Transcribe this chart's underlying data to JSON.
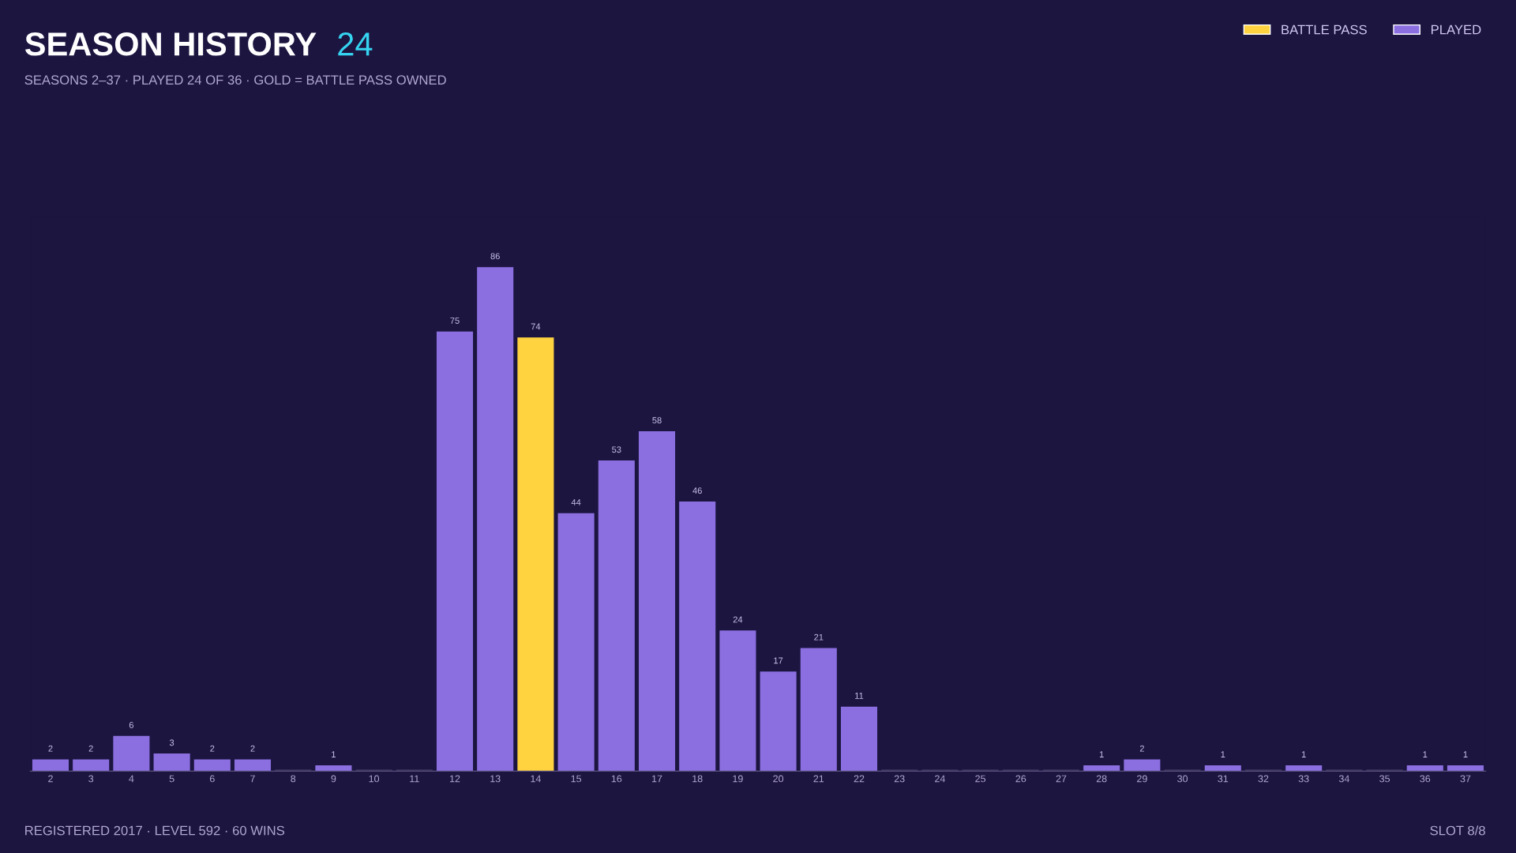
{
  "chart_data": {
    "type": "bar",
    "title": "SEASON HISTORY",
    "subtitle": "SEASONS 2–37 · PLAYED 24 OF 36 · GOLD = BATTLE PASS OWNED",
    "annotations": [
      "24",
      "REGISTERED 2017 · LEVEL 592 · 60 WINS",
      "SLOT 8/8"
    ],
    "categories": [
      "2",
      "3",
      "4",
      "5",
      "6",
      "7",
      "8",
      "9",
      "10",
      "11",
      "12",
      "13",
      "14",
      "15",
      "16",
      "17",
      "18",
      "19",
      "20",
      "21",
      "22",
      "23",
      "24",
      "25",
      "26",
      "27",
      "28",
      "29",
      "30",
      "31",
      "32",
      "33",
      "34",
      "35",
      "36",
      "37"
    ],
    "series": [
      {
        "name": "BATTLE PASS",
        "color": "#ffd23f",
        "values": [
          null,
          null,
          null,
          null,
          null,
          null,
          null,
          null,
          null,
          null,
          null,
          null,
          74,
          null,
          null,
          null,
          null,
          null,
          null,
          null,
          null,
          null,
          null,
          null,
          null,
          null,
          null,
          null,
          null,
          null,
          null,
          null,
          null,
          null,
          null,
          null
        ],
        "value_labels": [
          null,
          null,
          null,
          null,
          null,
          null,
          null,
          null,
          null,
          null,
          null,
          null,
          "74",
          null,
          null,
          null,
          null,
          null,
          null,
          null,
          null,
          null,
          null,
          null,
          null,
          null,
          null,
          null,
          null,
          null,
          null,
          null,
          null,
          null,
          null,
          null
        ]
      },
      {
        "name": "PLAYED",
        "color": "#8b6fe0",
        "colors": [
          "#8b6fe0",
          "#8b6fe0",
          "#8b6fe0",
          "#8b6fe0",
          "#8b6fe0",
          "#8b6fe0",
          "#3a3358",
          "#8b6fe0",
          "#3a3358",
          "#3a3358",
          "#8b6fe0",
          "#8b6fe0",
          null,
          "#8b6fe0",
          "#8b6fe0",
          "#8b6fe0",
          "#8b6fe0",
          "#8b6fe0",
          "#8b6fe0",
          "#8b6fe0",
          "#8b6fe0",
          "#3a3358",
          "#3a3358",
          "#3a3358",
          "#3a3358",
          "#3a3358",
          "#8b6fe0",
          "#8b6fe0",
          "#3a3358",
          "#8b6fe0",
          "#3a3358",
          "#8b6fe0",
          "#3a3358",
          "#3a3358",
          "#8b6fe0",
          "#8b6fe0"
        ],
        "values": [
          2,
          2,
          6,
          3,
          2,
          2,
          0,
          1,
          0,
          0,
          75,
          86,
          null,
          44,
          53,
          58,
          46,
          24,
          17,
          21,
          11,
          0,
          0,
          0,
          0,
          0,
          1,
          2,
          0,
          1,
          0,
          1,
          0,
          0,
          1,
          1
        ],
        "value_labels": [
          "2",
          "2",
          "6",
          "3",
          "2",
          "2",
          null,
          "1",
          null,
          null,
          "75",
          "86",
          null,
          "44",
          "53",
          "58",
          "46",
          "24",
          "17",
          "21",
          "11",
          null,
          null,
          null,
          null,
          null,
          "1",
          "2",
          null,
          "1",
          null,
          "1",
          null,
          null,
          "1",
          "1"
        ]
      }
    ],
    "legend": "top right",
    "grid": false
  }
}
